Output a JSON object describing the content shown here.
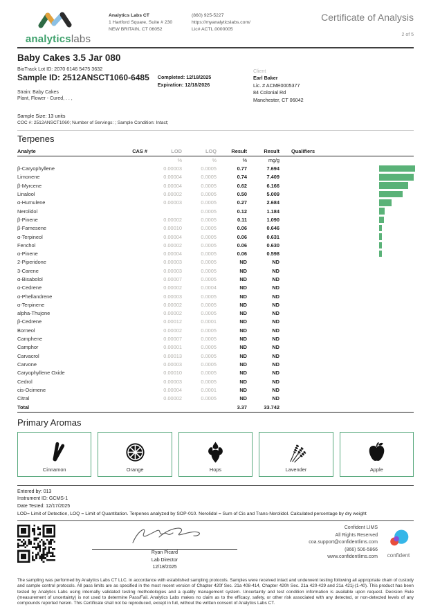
{
  "header": {
    "brand": {
      "name_primary": "analytics",
      "name_secondary": "labs"
    },
    "lab": {
      "name": "Analytics Labs CT",
      "address1": "1 Hartford Square, Suite # 230",
      "address2": "NEW BRITAIN, CT 06052",
      "phone": "(860) 925-5227",
      "website": "https://myanalyticslabs.com/",
      "license": "Lic# ACTL.0000005"
    },
    "title": "Certificate of Analysis",
    "page": "2 of 5"
  },
  "sample": {
    "product_name": "Baby Cakes 3.5 Jar 080",
    "biotrack_lot": "BioTrack Lot ID: 2070 6146 5475 3632",
    "sample_id": "Sample ID: 2512ANSCT1060-6485",
    "completed": "Completed: 12/18/2025",
    "expiration": "Expiration: 12/18/2026",
    "strain": "Strain: Baby Cakes",
    "matrix": "Plant, Flower - Cured, . . ,",
    "sample_size": "Sample Size: 13 units",
    "coc": "COC #: 2512ANSCT1060; Number of Servings: ; Sample Condition: Intact;",
    "client": {
      "label": "Client",
      "name": "Earl Baker",
      "license": "Lic. # ACME0005377",
      "address1": "84 Colonial Rd",
      "address2": "Manchester, CT 06042"
    }
  },
  "terpenes": {
    "section_title": "Terpenes",
    "columns": {
      "analyte": "Analyte",
      "cas": "CAS #",
      "lod": "LOD",
      "loq": "LOQ",
      "result_pct": "Result",
      "result_mg": "Result",
      "qualifiers": "Qualifiers"
    },
    "units": {
      "lod": "%",
      "loq": "%",
      "result_pct": "%",
      "result_mg": "mg/g"
    },
    "bar_color": "#5ab278",
    "bar_max": 0.77,
    "rows": [
      {
        "analyte": "β-Caryophyllene",
        "cas": "",
        "lod": "0.00003",
        "loq": "0.0005",
        "result_pct": "0.77",
        "result_mg": "7.694",
        "qualifiers": "",
        "bar": 0.77
      },
      {
        "analyte": "Limonene",
        "cas": "",
        "lod": "0.00004",
        "loq": "0.0005",
        "result_pct": "0.74",
        "result_mg": "7.409",
        "qualifiers": "",
        "bar": 0.74
      },
      {
        "analyte": "β-Myrcene",
        "cas": "",
        "lod": "0.00004",
        "loq": "0.0005",
        "result_pct": "0.62",
        "result_mg": "6.166",
        "qualifiers": "",
        "bar": 0.62
      },
      {
        "analyte": "Linalool",
        "cas": "",
        "lod": "0.00002",
        "loq": "0.0005",
        "result_pct": "0.50",
        "result_mg": "5.009",
        "qualifiers": "",
        "bar": 0.5
      },
      {
        "analyte": "α-Humulene",
        "cas": "",
        "lod": "0.00003",
        "loq": "0.0005",
        "result_pct": "0.27",
        "result_mg": "2.684",
        "qualifiers": "",
        "bar": 0.27
      },
      {
        "analyte": "Nerolidol",
        "cas": "",
        "lod": "",
        "loq": "0.0005",
        "result_pct": "0.12",
        "result_mg": "1.184",
        "qualifiers": "",
        "bar": 0.12
      },
      {
        "analyte": "β-Pinene",
        "cas": "",
        "lod": "0.00002",
        "loq": "0.0005",
        "result_pct": "0.11",
        "result_mg": "1.090",
        "qualifiers": "",
        "bar": 0.11
      },
      {
        "analyte": "β-Farnesene",
        "cas": "",
        "lod": "0.00010",
        "loq": "0.0005",
        "result_pct": "0.06",
        "result_mg": "0.646",
        "qualifiers": "",
        "bar": 0.06
      },
      {
        "analyte": "α-Terpineol",
        "cas": "",
        "lod": "0.00004",
        "loq": "0.0005",
        "result_pct": "0.06",
        "result_mg": "0.631",
        "qualifiers": "",
        "bar": 0.06
      },
      {
        "analyte": "Fenchol",
        "cas": "",
        "lod": "0.00002",
        "loq": "0.0005",
        "result_pct": "0.06",
        "result_mg": "0.630",
        "qualifiers": "",
        "bar": 0.06
      },
      {
        "analyte": "α-Pinene",
        "cas": "",
        "lod": "0.00004",
        "loq": "0.0005",
        "result_pct": "0.06",
        "result_mg": "0.598",
        "qualifiers": "",
        "bar": 0.06
      },
      {
        "analyte": "2-Piperidone",
        "cas": "",
        "lod": "0.00003",
        "loq": "0.0005",
        "result_pct": "ND",
        "result_mg": "ND",
        "qualifiers": "",
        "bar": null
      },
      {
        "analyte": "3-Carene",
        "cas": "",
        "lod": "0.00003",
        "loq": "0.0005",
        "result_pct": "ND",
        "result_mg": "ND",
        "qualifiers": "",
        "bar": null
      },
      {
        "analyte": "α-Bisabolol",
        "cas": "",
        "lod": "0.00007",
        "loq": "0.0005",
        "result_pct": "ND",
        "result_mg": "ND",
        "qualifiers": "",
        "bar": null
      },
      {
        "analyte": "α-Cedrene",
        "cas": "",
        "lod": "0.00002",
        "loq": "0.0004",
        "result_pct": "ND",
        "result_mg": "ND",
        "qualifiers": "",
        "bar": null
      },
      {
        "analyte": "α-Phellandrene",
        "cas": "",
        "lod": "0.00003",
        "loq": "0.0005",
        "result_pct": "ND",
        "result_mg": "ND",
        "qualifiers": "",
        "bar": null
      },
      {
        "analyte": "α-Terpinene",
        "cas": "",
        "lod": "0.00002",
        "loq": "0.0005",
        "result_pct": "ND",
        "result_mg": "ND",
        "qualifiers": "",
        "bar": null
      },
      {
        "analyte": "alpha-Thujone",
        "cas": "",
        "lod": "0.00002",
        "loq": "0.0005",
        "result_pct": "ND",
        "result_mg": "ND",
        "qualifiers": "",
        "bar": null
      },
      {
        "analyte": "β-Cedrene",
        "cas": "",
        "lod": "0.00012",
        "loq": "0.0001",
        "result_pct": "ND",
        "result_mg": "ND",
        "qualifiers": "",
        "bar": null
      },
      {
        "analyte": "Borneol",
        "cas": "",
        "lod": "0.00002",
        "loq": "0.0005",
        "result_pct": "ND",
        "result_mg": "ND",
        "qualifiers": "",
        "bar": null
      },
      {
        "analyte": "Camphene",
        "cas": "",
        "lod": "0.00007",
        "loq": "0.0005",
        "result_pct": "ND",
        "result_mg": "ND",
        "qualifiers": "",
        "bar": null
      },
      {
        "analyte": "Camphor",
        "cas": "",
        "lod": "0.00001",
        "loq": "0.0005",
        "result_pct": "ND",
        "result_mg": "ND",
        "qualifiers": "",
        "bar": null
      },
      {
        "analyte": "Carvacrol",
        "cas": "",
        "lod": "0.00013",
        "loq": "0.0005",
        "result_pct": "ND",
        "result_mg": "ND",
        "qualifiers": "",
        "bar": null
      },
      {
        "analyte": "Carvone",
        "cas": "",
        "lod": "0.00003",
        "loq": "0.0005",
        "result_pct": "ND",
        "result_mg": "ND",
        "qualifiers": "",
        "bar": null
      },
      {
        "analyte": "Caryophyllene Oxide",
        "cas": "",
        "lod": "0.00010",
        "loq": "0.0005",
        "result_pct": "ND",
        "result_mg": "ND",
        "qualifiers": "",
        "bar": null
      },
      {
        "analyte": "Cedrol",
        "cas": "",
        "lod": "0.00003",
        "loq": "0.0005",
        "result_pct": "ND",
        "result_mg": "ND",
        "qualifiers": "",
        "bar": null
      },
      {
        "analyte": "cis-Ocimene",
        "cas": "",
        "lod": "0.00004",
        "loq": "0.0001",
        "result_pct": "ND",
        "result_mg": "ND",
        "qualifiers": "",
        "bar": null
      },
      {
        "analyte": "Citral",
        "cas": "",
        "lod": "0.00002",
        "loq": "0.0005",
        "result_pct": "ND",
        "result_mg": "ND",
        "qualifiers": "",
        "bar": null
      }
    ],
    "total": {
      "label": "Total",
      "result_pct": "3.37",
      "result_mg": "33.742"
    }
  },
  "aromas": {
    "section_title": "Primary Aromas",
    "items": [
      {
        "label": "Cinnamon",
        "icon": "cinnamon-icon"
      },
      {
        "label": "Orange",
        "icon": "orange-icon"
      },
      {
        "label": "Hops",
        "icon": "hops-icon"
      },
      {
        "label": "Lavender",
        "icon": "lavender-icon"
      },
      {
        "label": "Apple",
        "icon": "apple-icon"
      }
    ]
  },
  "analysis_meta": {
    "entered_by": "Entered by: 013",
    "instrument": "Instrument ID: GCMS-1",
    "date_tested": "Date Tested: 12/17/2025",
    "note": "LOD= Limit of Detection, LOQ = Limit of Quantitation. Terpenes analyzed by SOP-010. Nerolidol = Sum of Cis and Trans-Nerolidol. Calculated percentage by dry weight"
  },
  "signature": {
    "name": "Ryan Picard",
    "title": "Lab Director",
    "date": "12/18/2025"
  },
  "lims": {
    "name": "Confident LIMS",
    "rights": "All Rights Reserved",
    "email": "coa.support@confidentlims.com",
    "phone": "(866) 506-5866",
    "website": "www.confidentlims.com",
    "logo_text": "confident"
  },
  "disclaimer": "The sampling was performed by Analytics Labs CT LLC. in accordance with established sampling protocols. Samples were received intact and underwent testing following all appropriate chain of custody and sample control protocols. All pass limits are as specified in the most recent version of Chapter 420f Sec. 21a 408-414, Chapter 420h Sec. 21a 420-429 and 21a 421j-(1-40). This product has been tested by Analytics Labs using internally validated testing methodologies and a quality management system. Uncertainty and test condition information is available upon request. Decision Rule (measurement of uncertainty) is not used to determine Pass/Fail. Analytics Labs makes no claim as to the efficacy, safety, or other risk associated with any detected, or non-detected levels of any compounds reported herein. This Certificate shall not be reproduced, except in full, without the written consent of Analytics Labs CT."
}
